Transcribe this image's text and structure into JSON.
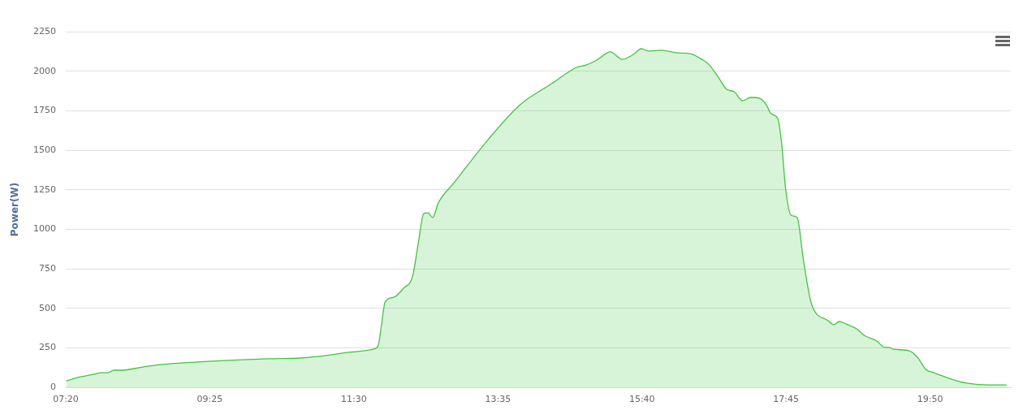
{
  "chart_data": {
    "type": "area",
    "ylabel": "Power(W)",
    "x": [
      7.34,
      7.56,
      7.73,
      7.85,
      7.94,
      8.03,
      8.14,
      8.44,
      8.73,
      9.2,
      9.67,
      10.26,
      10.72,
      11.08,
      11.43,
      11.78,
      11.85,
      11.9,
      11.95,
      12.08,
      12.22,
      12.35,
      12.43,
      12.51,
      12.57,
      12.64,
      12.72,
      12.95,
      13.42,
      13.89,
      14.36,
      14.72,
      14.86,
      15.01,
      15.21,
      15.38,
      15.56,
      15.65,
      15.77,
      15.95,
      16.18,
      16.36,
      16.55,
      16.64,
      16.77,
      16.89,
      17,
      17.12,
      17.24,
      17.36,
      17.47,
      17.53,
      17.63,
      17.69,
      17.74,
      17.82,
      17.91,
      18,
      18.12,
      18.36,
      18.44,
      18.52,
      18.64,
      18.77,
      18.88,
      19.06,
      19.18,
      19.24,
      19.3,
      19.53,
      19.65,
      19.77,
      19.89,
      20.07,
      20.36,
      20.66,
      20.94
    ],
    "series": [
      {
        "color": "#3cc83c",
        "values": [
          41,
          67,
          82,
          92,
          92,
          108,
          108,
          128,
          144,
          159,
          170,
          180,
          185,
          200,
          221,
          241,
          262,
          396,
          539,
          570,
          627,
          704,
          909,
          1099,
          1104,
          1074,
          1166,
          1295,
          1556,
          1783,
          1921,
          2024,
          2039,
          2070,
          2122,
          2075,
          2111,
          2142,
          2127,
          2132,
          2116,
          2111,
          2070,
          2039,
          1962,
          1885,
          1870,
          1813,
          1834,
          1829,
          1783,
          1731,
          1700,
          1526,
          1269,
          1089,
          1074,
          807,
          524,
          421,
          396,
          416,
          396,
          370,
          329,
          293,
          252,
          252,
          241,
          231,
          190,
          113,
          92,
          62,
          26,
          15,
          15
        ]
      }
    ],
    "xlim": [
      7.3333,
      21
    ],
    "xticks": [
      {
        "value": 7.3333,
        "label": "07:20"
      },
      {
        "value": 9.4167,
        "label": "09:25"
      },
      {
        "value": 11.5,
        "label": "11:30"
      },
      {
        "value": 13.5833,
        "label": "13:35"
      },
      {
        "value": 15.6667,
        "label": "15:40"
      },
      {
        "value": 17.75,
        "label": "17:45"
      },
      {
        "value": 19.8333,
        "label": "19:50"
      }
    ],
    "ylim": [
      0,
      2250
    ],
    "yticks": [
      0,
      250,
      500,
      750,
      1000,
      1250,
      1500,
      1750,
      2000,
      2250
    ],
    "grid": "y",
    "legend": false,
    "marker": "none",
    "line_style": "solid"
  }
}
